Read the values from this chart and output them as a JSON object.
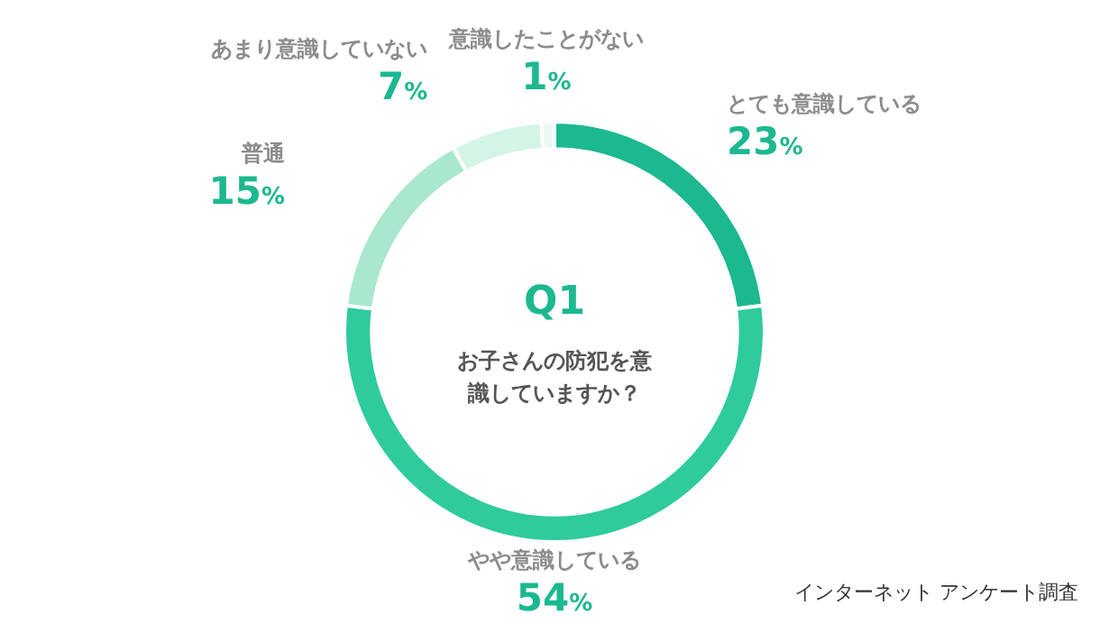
{
  "chart_data": {
    "type": "donut",
    "title": "Q1",
    "subtitle": "お子さんの防犯を意識していますか？",
    "categories": [
      "とても意識している",
      "やや意識している",
      "普通",
      "あまり意識していない",
      "意識したことがない"
    ],
    "values": [
      23,
      54,
      15,
      7,
      1
    ],
    "colors": [
      "#1cb890",
      "#2fcb9c",
      "#a9e8cd",
      "#d4f4e6",
      "#eaf9f2"
    ],
    "value_labels": [
      "23%",
      "54%",
      "15%",
      "7%",
      "1%"
    ],
    "data_labels": true,
    "legend": false,
    "annotations": [
      "インターネット アンケート調査"
    ]
  }
}
